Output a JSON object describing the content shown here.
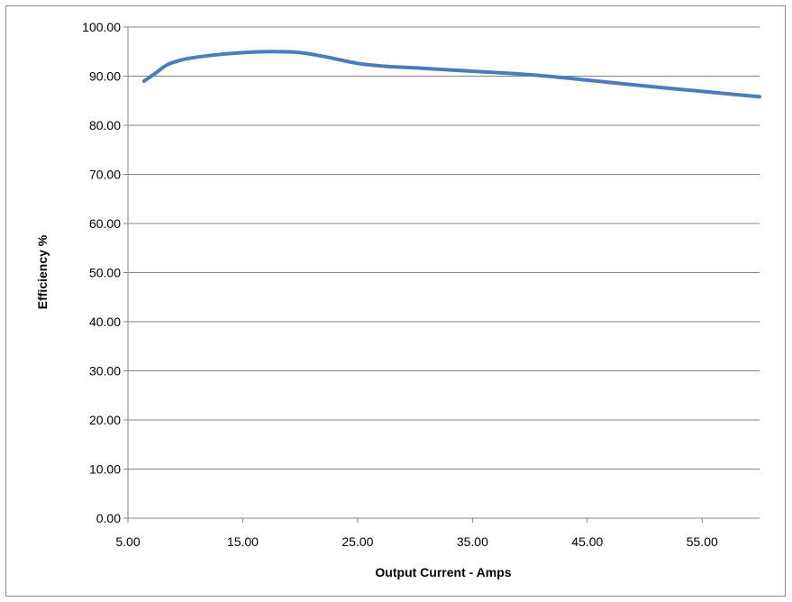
{
  "chart_data": {
    "type": "line",
    "title": "",
    "xlabel": "Output Current - Amps",
    "ylabel": "Efficiency %",
    "xlim": [
      5,
      60
    ],
    "ylim": [
      0,
      100
    ],
    "x_ticks": [
      5,
      15,
      25,
      35,
      45,
      55
    ],
    "x_tick_labels": [
      "5.00",
      "15.00",
      "25.00",
      "35.00",
      "45.00",
      "55.00"
    ],
    "y_ticks": [
      0,
      10,
      20,
      30,
      40,
      50,
      60,
      70,
      80,
      90,
      100
    ],
    "y_tick_labels": [
      "0.00",
      "10.00",
      "20.00",
      "30.00",
      "40.00",
      "50.00",
      "60.00",
      "70.00",
      "80.00",
      "90.00",
      "100.00"
    ],
    "grid": "horizontal",
    "legend": "none",
    "series": [
      {
        "color": "#4a7ebb",
        "x": [
          6.4,
          7.4,
          8.4,
          9.5,
          10.5,
          12.5,
          15,
          17.5,
          20,
          22.5,
          25,
          27.5,
          30,
          35,
          40,
          45,
          50,
          55,
          60
        ],
        "y": [
          89.0,
          90.6,
          92.3,
          93.2,
          93.7,
          94.3,
          94.8,
          95.0,
          94.8,
          93.8,
          92.6,
          92.0,
          91.7,
          91.0,
          90.3,
          89.2,
          88.0,
          86.9,
          85.8
        ]
      }
    ]
  }
}
